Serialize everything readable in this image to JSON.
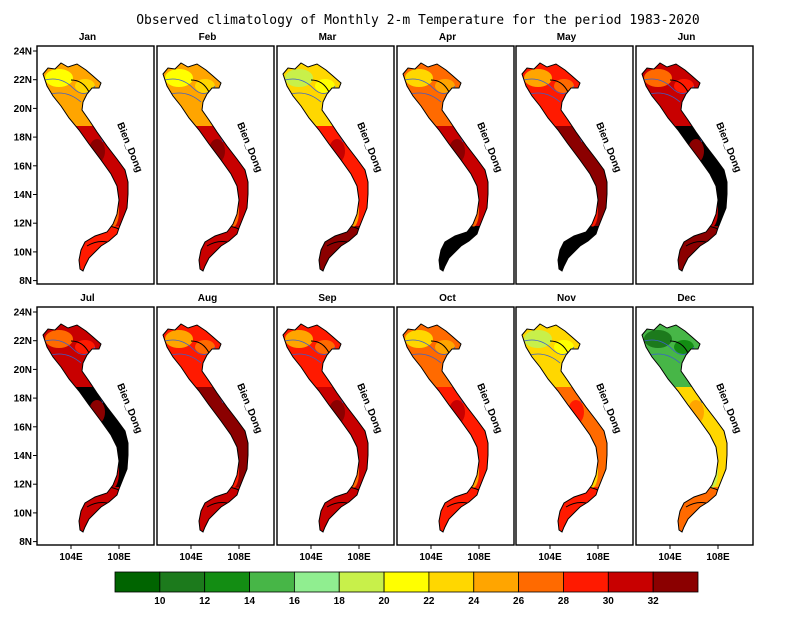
{
  "title": "Observed climatology of Monthly 2-m Temperature for the period 1983-2020",
  "sea_label": "Bien_Dong",
  "lat_ticks": [
    "24N",
    "22N",
    "20N",
    "18N",
    "16N",
    "14N",
    "12N",
    "10N",
    "8N"
  ],
  "lon_ticks": [
    "104E",
    "108E"
  ],
  "panels": [
    {
      "month": "Jan",
      "north": 8,
      "central": 11,
      "south": 10
    },
    {
      "month": "Feb",
      "north": 8,
      "central": 11,
      "south": 11
    },
    {
      "month": "Mar",
      "north": 7,
      "central": 10,
      "south": 12
    },
    {
      "month": "Apr",
      "north": 9,
      "central": 11,
      "south": 13
    },
    {
      "month": "May",
      "north": 10,
      "central": 12,
      "south": 13
    },
    {
      "month": "Jun",
      "north": 11,
      "central": 13,
      "south": 12
    },
    {
      "month": "Jul",
      "north": 11,
      "central": 13,
      "south": 11
    },
    {
      "month": "Aug",
      "north": 10,
      "central": 12,
      "south": 11
    },
    {
      "month": "Sep",
      "north": 10,
      "central": 11,
      "south": 11
    },
    {
      "month": "Oct",
      "north": 9,
      "central": 10,
      "south": 10
    },
    {
      "month": "Nov",
      "north": 7,
      "central": 9,
      "south": 10
    },
    {
      "month": "Dec",
      "north": 3,
      "central": 7,
      "south": 9
    }
  ],
  "colorbar": {
    "colors": [
      "#006400",
      "#1c7a1c",
      "#138d13",
      "#47b647",
      "#90ee90",
      "#c8f04a",
      "#ffff00",
      "#ffd700",
      "#ffa500",
      "#ff6a00",
      "#ff1a00",
      "#c80000",
      "#8b0000"
    ],
    "labels": [
      "10",
      "12",
      "14",
      "16",
      "18",
      "20",
      "22",
      "24",
      "26",
      "28",
      "30",
      "32"
    ]
  }
}
